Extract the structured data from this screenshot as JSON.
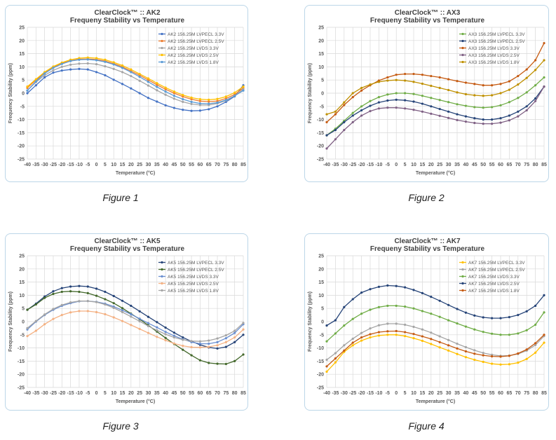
{
  "chart_data": [
    {
      "type": "line",
      "title": "ClearClock™ :: AK2",
      "subtitle": "Frequeny Stability vs Temperature",
      "xlabel": "Temperature (°C)",
      "ylabel": "Frequency Stability (ppm)",
      "ylim": [
        -25,
        25
      ],
      "yticks": [
        25,
        20,
        15,
        10,
        5,
        0,
        -5,
        -10,
        -15,
        -20,
        -25
      ],
      "grid": true,
      "legend_position": "top-right",
      "x": [
        -40,
        -35,
        -30,
        -25,
        -20,
        -15,
        -10,
        -5,
        0,
        5,
        10,
        15,
        20,
        25,
        30,
        35,
        40,
        45,
        50,
        55,
        60,
        65,
        70,
        75,
        80,
        85
      ],
      "series": [
        {
          "name": "AK2 156.25M LVPECL 3.3V",
          "color": "#4472c4",
          "values": [
            0,
            3,
            6,
            7.8,
            8.6,
            9,
            9.2,
            9,
            8,
            6.8,
            5.1,
            3.5,
            1.8,
            0,
            -1.8,
            -3.2,
            -4.6,
            -5.6,
            -6.3,
            -6.7,
            -6.6,
            -6.1,
            -5,
            -3.3,
            -1.2,
            3
          ]
        },
        {
          "name": "AK2 156.25M LVPECL 2.5V",
          "color": "#ed7d31",
          "values": [
            2,
            5,
            7.8,
            9.8,
            11.3,
            12.3,
            12.9,
            13,
            12.8,
            12.2,
            11.2,
            10,
            8.4,
            6.8,
            5,
            3.2,
            1.5,
            0,
            -1.3,
            -2.3,
            -3,
            -3.2,
            -3,
            -2,
            -0.5,
            2
          ]
        },
        {
          "name": "AK2 156.25M LVDS 3.3V",
          "color": "#a5a5a5",
          "values": [
            1,
            4.2,
            6.8,
            8.7,
            10,
            10.8,
            11.2,
            11.3,
            11,
            10.2,
            9.2,
            8,
            6.5,
            4.7,
            2.9,
            1.1,
            -0.6,
            -2.1,
            -3.3,
            -4.1,
            -4.5,
            -4.5,
            -3.9,
            -2.8,
            -1,
            1.5
          ]
        },
        {
          "name": "AK2 156.25M LVDS 2.5V",
          "color": "#ffc000",
          "values": [
            2.5,
            5.3,
            8,
            10.1,
            11.6,
            12.7,
            13.3,
            13.5,
            13.3,
            12.7,
            11.7,
            10.5,
            9,
            7.3,
            5.6,
            3.8,
            2.1,
            0.6,
            -0.7,
            -1.7,
            -2.3,
            -2.5,
            -2.2,
            -1.3,
            0.2,
            2.5
          ]
        },
        {
          "name": "AK2 156.25M LVDS 1.8V",
          "color": "#5b9bd5",
          "values": [
            1,
            4.5,
            7.5,
            9.6,
            11.1,
            12.2,
            12.7,
            12.8,
            12.5,
            11.9,
            10.9,
            9.6,
            8,
            6.2,
            4.3,
            2.4,
            0.6,
            -1,
            -2.3,
            -3.3,
            -3.9,
            -4,
            -3.6,
            -2.6,
            -1,
            1
          ]
        }
      ]
    },
    {
      "type": "line",
      "title": "ClearClock™ :: AX3",
      "subtitle": "Frequeny Stability vs Temperature",
      "xlabel": "Temperature (°C)",
      "ylabel": "Frequency Stability (ppm)",
      "ylim": [
        -25,
        25
      ],
      "yticks": [
        25,
        20,
        15,
        10,
        5,
        0,
        -5,
        -10,
        -15,
        -20,
        -25
      ],
      "grid": true,
      "legend_position": "top-right",
      "x": [
        -40,
        -35,
        -30,
        -25,
        -20,
        -15,
        -10,
        -5,
        0,
        5,
        10,
        15,
        20,
        25,
        30,
        35,
        40,
        45,
        50,
        55,
        60,
        65,
        70,
        75,
        80,
        85
      ],
      "series": [
        {
          "name": "AX3 156.25M LVPECL 3.3V",
          "color": "#70ad47",
          "values": [
            -16,
            -13.5,
            -10.5,
            -7.5,
            -5,
            -3,
            -1.5,
            -0.5,
            0,
            0,
            -0.3,
            -1,
            -1.8,
            -2.6,
            -3.4,
            -4.2,
            -4.8,
            -5.3,
            -5.5,
            -5.3,
            -4.6,
            -3.4,
            -1.8,
            0.3,
            3,
            6
          ]
        },
        {
          "name": "AX3 156.25M LVPECL 2.5V",
          "color": "#264478",
          "values": [
            -16,
            -14,
            -11,
            -8.5,
            -6.5,
            -4.8,
            -3.5,
            -2.8,
            -2.5,
            -2.7,
            -3.2,
            -4,
            -5,
            -6,
            -7,
            -8,
            -8.8,
            -9.5,
            -10,
            -10,
            -9.5,
            -8.5,
            -7,
            -5,
            -2,
            2.5
          ]
        },
        {
          "name": "AX3 156.25M LVDS 3.3V",
          "color": "#c55a11",
          "values": [
            -11,
            -8,
            -4.5,
            -1.5,
            1,
            3,
            4.8,
            6,
            7,
            7.3,
            7.3,
            7,
            6.5,
            6,
            5.3,
            4.6,
            4,
            3.5,
            3,
            3,
            3.5,
            4.5,
            6.5,
            9,
            12.5,
            19
          ]
        },
        {
          "name": "AX3 156.25M LVDS 2.5V",
          "color": "#7f6084",
          "values": [
            -21,
            -17.5,
            -14,
            -11,
            -8.5,
            -6.8,
            -5.8,
            -5.5,
            -5.5,
            -5.8,
            -6.3,
            -7,
            -7.8,
            -8.6,
            -9.4,
            -10.2,
            -10.8,
            -11.3,
            -11.6,
            -11.6,
            -11.2,
            -10.3,
            -8.8,
            -6.5,
            -3,
            2.5
          ]
        },
        {
          "name": "AX3 156.25M LVDS 1.8V",
          "color": "#bf9000",
          "values": [
            -8,
            -7,
            -3.5,
            0,
            2,
            3.3,
            4.3,
            4.8,
            5,
            4.8,
            4.3,
            3.6,
            2.8,
            2,
            1.2,
            0.3,
            -0.4,
            -0.8,
            -1,
            -0.8,
            0,
            1.3,
            3.3,
            5.8,
            8.8,
            12.5
          ]
        }
      ]
    },
    {
      "type": "line",
      "title": "ClearClock™ :: AK5",
      "subtitle": "Frequeny Stability vs Temperature",
      "xlabel": "Temperature (°C)",
      "ylabel": "Frequency Stability (ppm)",
      "ylim": [
        -25,
        25
      ],
      "yticks": [
        25,
        20,
        15,
        10,
        5,
        0,
        -5,
        -10,
        -15,
        -20,
        -25
      ],
      "grid": true,
      "legend_position": "top-right",
      "x": [
        -40,
        -35,
        -30,
        -25,
        -20,
        -15,
        -10,
        -5,
        0,
        5,
        10,
        15,
        20,
        25,
        30,
        35,
        40,
        45,
        50,
        55,
        60,
        65,
        70,
        75,
        80,
        85
      ],
      "series": [
        {
          "name": "AK5 156.25M LVPECL 3.3V",
          "color": "#264478",
          "values": [
            4.5,
            6.8,
            9.5,
            11.5,
            12.7,
            13.3,
            13.5,
            13.3,
            12.5,
            11.3,
            9.7,
            7.9,
            6,
            3.9,
            1.8,
            -0.2,
            -2.3,
            -4.2,
            -6,
            -7.5,
            -8.8,
            -9.8,
            -10.2,
            -9.6,
            -7.8,
            -5
          ]
        },
        {
          "name": "AK5 156.25M LVPECL 2.5V",
          "color": "#43682b",
          "values": [
            4.5,
            6.5,
            9,
            10.5,
            11.3,
            11.5,
            11.3,
            10.8,
            9.8,
            8.5,
            7,
            5.1,
            3,
            0.9,
            -1.4,
            -3.8,
            -6.2,
            -8.5,
            -10.7,
            -12.8,
            -14.7,
            -15.7,
            -16,
            -16.1,
            -15,
            -12.5
          ]
        },
        {
          "name": "AK5 156.25M LVDS 3.3V",
          "color": "#698ed0",
          "values": [
            -3,
            0,
            2.5,
            4.5,
            6,
            7,
            7.7,
            7.8,
            7.5,
            6.8,
            5.7,
            4.3,
            2.8,
            1.1,
            -0.6,
            -2.2,
            -3.9,
            -5.4,
            -6.7,
            -7.8,
            -8.4,
            -8.4,
            -7.8,
            -6.3,
            -4.3,
            -1
          ]
        },
        {
          "name": "AK5 156.25M LVDS 2.5V",
          "color": "#f4b183",
          "values": [
            -5.5,
            -3.5,
            -1,
            1,
            2.5,
            3.5,
            4,
            4,
            3.6,
            2.8,
            1.6,
            0.2,
            -1.3,
            -2.8,
            -4.3,
            -5.8,
            -7.1,
            -8.3,
            -9.2,
            -9.7,
            -9.8,
            -9.6,
            -9,
            -7.8,
            -6,
            -3
          ]
        },
        {
          "name": "AK5 156.25M LVDS 1.8V",
          "color": "#a5a5a5",
          "values": [
            -2.5,
            0.2,
            2.7,
            4.8,
            6.3,
            7.3,
            7.8,
            7.8,
            7.4,
            6.5,
            5.2,
            3.6,
            1.9,
            0.1,
            -1.7,
            -3.3,
            -4.8,
            -6,
            -6.9,
            -7.4,
            -7.5,
            -7.2,
            -6.4,
            -5.2,
            -3.5,
            -0.5
          ]
        }
      ]
    },
    {
      "type": "line",
      "title": "ClearClock™ :: AK7",
      "subtitle": "Frequeny Stability vs Temperature",
      "xlabel": "Temperature (°C)",
      "ylabel": "Frequency Stability (ppm)",
      "ylim": [
        -25,
        25
      ],
      "yticks": [
        25,
        20,
        15,
        10,
        5,
        0,
        -5,
        -10,
        -15,
        -20,
        -25
      ],
      "grid": true,
      "legend_position": "top-right",
      "x": [
        -40,
        -35,
        -30,
        -25,
        -20,
        -15,
        -10,
        -5,
        0,
        5,
        10,
        15,
        20,
        25,
        30,
        35,
        40,
        45,
        50,
        55,
        60,
        65,
        70,
        75,
        80,
        85
      ],
      "series": [
        {
          "name": "AK7 156.25M LVPECL 3.3V",
          "color": "#ffc000",
          "values": [
            -19,
            -15.5,
            -11.5,
            -9,
            -7.2,
            -6,
            -5.3,
            -5,
            -5,
            -5.5,
            -6.3,
            -7.3,
            -8.5,
            -9.8,
            -11,
            -12.3,
            -13.5,
            -14.5,
            -15.3,
            -16,
            -16.3,
            -16.2,
            -15.6,
            -14.2,
            -11.8,
            -8
          ]
        },
        {
          "name": "AK7 156.25M LVPECL 2.5V",
          "color": "#a5a5a5",
          "values": [
            -14.5,
            -12,
            -9,
            -6.5,
            -4.3,
            -2.6,
            -1.4,
            -0.8,
            -0.8,
            -1.2,
            -2,
            -3,
            -4.2,
            -5.6,
            -7,
            -8.4,
            -9.7,
            -10.9,
            -11.9,
            -12.6,
            -13,
            -12.9,
            -12.3,
            -11,
            -8.9,
            -5.5
          ]
        },
        {
          "name": "AK7 156.25M LVDS 3.3V",
          "color": "#70ad47",
          "values": [
            -7.5,
            -4.5,
            -1.5,
            1,
            3,
            4.5,
            5.5,
            6,
            6,
            5.7,
            5,
            4,
            3,
            1.8,
            0.5,
            -0.7,
            -1.9,
            -3,
            -3.9,
            -4.6,
            -5,
            -5,
            -4.5,
            -3.3,
            -1.2,
            3.5
          ]
        },
        {
          "name": "AK7 156.25M LVDS 2.5V",
          "color": "#264478",
          "values": [
            -1.5,
            0.5,
            5.5,
            8.5,
            11,
            12.3,
            13.2,
            13.7,
            13.5,
            13,
            12,
            10.8,
            9.4,
            7.9,
            6.3,
            4.8,
            3.4,
            2.3,
            1.6,
            1.3,
            1.3,
            1.7,
            2.5,
            3.9,
            6,
            10
          ]
        },
        {
          "name": "AK7 156.25M LVDS 1.8V",
          "color": "#c55a11",
          "values": [
            -17,
            -14,
            -11,
            -8,
            -6,
            -4.8,
            -4,
            -3.7,
            -3.6,
            -4,
            -4.7,
            -5.6,
            -6.6,
            -7.8,
            -9,
            -10.2,
            -11.3,
            -12.2,
            -12.8,
            -13.2,
            -13.3,
            -13,
            -12.1,
            -10.6,
            -8.2,
            -5
          ]
        }
      ]
    }
  ],
  "captions": [
    "Figure 1",
    "Figure 2",
    "Figure 3",
    "Figure 4"
  ]
}
